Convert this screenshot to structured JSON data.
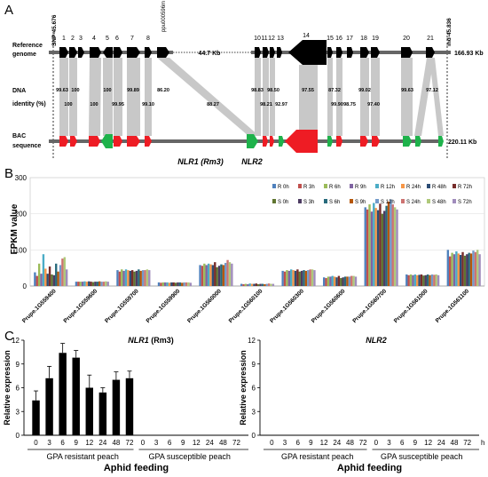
{
  "panel_a": {
    "label": "A",
    "ref_label_1": "Reference",
    "ref_label_2": "genome",
    "dna_label_1": "DNA",
    "dna_label_2": "identity (%)",
    "bac_label_1": "BAC",
    "bac_label_2": "sequence",
    "left_marker": "SNP-45.676",
    "right_marker": "ind-45.836",
    "ref_gap": "44.7 Kb",
    "ref_length": "166.93 Kb",
    "bac_length": "220.11 Kb",
    "ppu_label": "ppu000596m",
    "nlr1_label": "NLR1 (Rm3)",
    "nlr2_label": "NLR2",
    "gene_numbers": [
      "1",
      "2",
      "3",
      "4",
      "5",
      "6",
      "7",
      "8",
      "10",
      "11",
      "12",
      "13",
      "14",
      "15",
      "16",
      "17",
      "18",
      "19",
      "20",
      "21"
    ],
    "identity_upper": [
      "99.63",
      "100",
      "100",
      "99.89",
      "86.20",
      "98.83",
      "98.50",
      "97.55",
      "87.32",
      "99.02",
      "99.63",
      "97.12"
    ],
    "identity_lower": [
      "100",
      "100",
      "99.95",
      "99.10",
      "88.27",
      "98.21",
      "92.97",
      "99.90",
      "98.75",
      "97.40"
    ],
    "colors": {
      "reference_gene": "#000000",
      "bac_red": "#ee1c24",
      "bac_green": "#1eb24b",
      "backbone": "#666666",
      "identity_link": "#c8c8c8"
    }
  },
  "panel_b": {
    "label": "B",
    "ylabel": "FPKM value",
    "yticks": [
      "0",
      "100",
      "200",
      "300"
    ],
    "legend": [
      "R 0h",
      "R 3h",
      "R 6h",
      "R 9h",
      "R 12h",
      "R 24h",
      "R 48h",
      "R 72h",
      "S 0h",
      "S 3h",
      "S 6h",
      "S 9h",
      "S 12h",
      "S 24h",
      "S 48h",
      "S 72h"
    ],
    "series_colors": [
      "#4f81bd",
      "#c0504d",
      "#9bbb59",
      "#8064a2",
      "#4bacc6",
      "#f79646",
      "#2c4d75",
      "#772c2a",
      "#5f7530",
      "#4d3b62",
      "#276a7c",
      "#b65708",
      "#729aca",
      "#cd7371",
      "#afc97a",
      "#a08cbc"
    ]
  },
  "panel_c": {
    "label": "C",
    "left_title_1": "NLR1",
    "left_title_2": " (Rm3)",
    "right_title": "NLR2",
    "ylabel": "Relative expression",
    "yticks": [
      "0",
      "3",
      "6",
      "9",
      "12"
    ],
    "time_ticks": [
      "0",
      "3",
      "6",
      "9",
      "12",
      "24",
      "48",
      "72",
      "0",
      "3",
      "6",
      "9",
      "12",
      "24",
      "48",
      "72"
    ],
    "hour_unit": "h",
    "resistant_label": "GPA resistant peach",
    "susceptible_label": "GPA susceptible peach",
    "xlabel": "Aphid feeding"
  },
  "chart_data": [
    {
      "type": "bar",
      "ylabel": "FPKM value",
      "ylim": [
        0,
        300
      ],
      "categories": [
        "Prupe.1G559400",
        "Prupe.1G559600",
        "Prupe.1G559700",
        "Prupe.1G559900",
        "Prupe.1G560000",
        "Prupe.1G560100",
        "Prupe.1G560300",
        "Prupe.1G560600",
        "Prupe.1G560700",
        "Prupe.1G561000",
        "Prupe.1G561100"
      ],
      "legend_position": "top-right",
      "series": [
        {
          "name": "R 0h",
          "values": [
            38,
            12,
            44,
            10,
            58,
            6,
            42,
            24,
            218,
            32,
            100
          ]
        },
        {
          "name": "R 3h",
          "values": [
            28,
            12,
            40,
            9,
            56,
            5,
            40,
            22,
            212,
            30,
            82
          ]
        },
        {
          "name": "R 6h",
          "values": [
            62,
            12,
            46,
            10,
            62,
            6,
            44,
            26,
            226,
            32,
            92
          ]
        },
        {
          "name": "R 9h",
          "values": [
            34,
            12,
            42,
            10,
            58,
            5,
            42,
            26,
            206,
            30,
            88
          ]
        },
        {
          "name": "R 12h",
          "values": [
            88,
            13,
            46,
            10,
            62,
            7,
            46,
            28,
            230,
            32,
            96
          ]
        },
        {
          "name": "R 24h",
          "values": [
            48,
            12,
            44,
            9,
            60,
            6,
            44,
            26,
            216,
            30,
            90
          ]
        },
        {
          "name": "R 48h",
          "values": [
            34,
            13,
            42,
            10,
            58,
            6,
            42,
            24,
            210,
            31,
            86
          ]
        },
        {
          "name": "R 72h",
          "values": [
            54,
            12,
            44,
            10,
            66,
            7,
            46,
            28,
            228,
            32,
            94
          ]
        },
        {
          "name": "S 0h",
          "values": [
            32,
            11,
            40,
            9,
            52,
            5,
            40,
            22,
            200,
            29,
            84
          ]
        },
        {
          "name": "S 3h",
          "values": [
            30,
            12,
            42,
            10,
            56,
            6,
            42,
            24,
            208,
            30,
            88
          ]
        },
        {
          "name": "S 6h",
          "values": [
            62,
            12,
            46,
            10,
            60,
            6,
            44,
            26,
            222,
            32,
            92
          ]
        },
        {
          "name": "S 9h",
          "values": [
            40,
            13,
            42,
            9,
            58,
            5,
            42,
            26,
            234,
            30,
            90
          ]
        },
        {
          "name": "S 12h",
          "values": [
            58,
            12,
            44,
            10,
            64,
            6,
            44,
            26,
            240,
            32,
            98
          ]
        },
        {
          "name": "S 24h",
          "values": [
            76,
            12,
            44,
            10,
            72,
            7,
            46,
            28,
            226,
            31,
            94
          ]
        },
        {
          "name": "S 48h",
          "values": [
            80,
            13,
            46,
            10,
            66,
            6,
            46,
            28,
            218,
            32,
            100
          ]
        },
        {
          "name": "S 72h",
          "values": [
            46,
            12,
            44,
            9,
            62,
            6,
            44,
            26,
            212,
            30,
            88
          ]
        }
      ]
    },
    {
      "type": "bar",
      "title": "NLR1 (Rm3)",
      "ylabel": "Relative expression",
      "xlabel": "Aphid feeding",
      "ylim": [
        0,
        12
      ],
      "categories": [
        "0",
        "3",
        "6",
        "9",
        "12",
        "24",
        "48",
        "72",
        "0",
        "3",
        "6",
        "9",
        "12",
        "24",
        "48",
        "72"
      ],
      "groups": [
        "GPA resistant peach",
        "GPA susceptible peach"
      ],
      "series": [
        {
          "values": [
            4.4,
            7.2,
            10.4,
            9.8,
            6.0,
            5.4,
            7.0,
            7.2,
            0,
            0,
            0,
            0,
            0,
            0,
            0,
            0
          ],
          "errors": [
            1.2,
            1.5,
            1.2,
            0.9,
            1.6,
            0.6,
            1.0,
            0.9,
            0,
            0,
            0,
            0,
            0,
            0,
            0,
            0
          ]
        }
      ]
    },
    {
      "type": "bar",
      "title": "NLR2",
      "ylabel": "Relative expression",
      "xlabel": "Aphid feeding",
      "ylim": [
        0,
        12
      ],
      "categories": [
        "0",
        "3",
        "6",
        "9",
        "12",
        "24",
        "48",
        "72",
        "0",
        "3",
        "6",
        "9",
        "12",
        "24",
        "48",
        "72"
      ],
      "groups": [
        "GPA resistant peach",
        "GPA susceptible peach"
      ],
      "series": [
        {
          "values": [
            0,
            0,
            0,
            0,
            0,
            0,
            0,
            0,
            0,
            0,
            0,
            0,
            0,
            0,
            0,
            0
          ]
        }
      ]
    }
  ]
}
